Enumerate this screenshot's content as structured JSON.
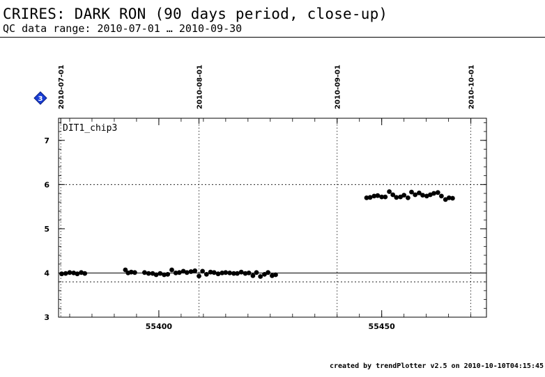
{
  "header": {
    "title": "CRIRES: DARK RON (90 days period, close-up)",
    "subtitle": "QC data range: 2010-07-01 … 2010-09-30"
  },
  "footer": {
    "text": "created by trendPlotter v2.5 on 2010-10-10T04:15:45"
  },
  "badge": {
    "label": "3",
    "color": "#1a3fd6"
  },
  "chart_data": {
    "type": "scatter",
    "panel_label": "DIT1_chip3",
    "xlim": [
      55377.5,
      55473.5
    ],
    "ylim": [
      3,
      7.5
    ],
    "x_ticks": [
      55400,
      55450
    ],
    "y_ticks": [
      3,
      4,
      5,
      6,
      7
    ],
    "date_markers": [
      {
        "label": "2010-07-01",
        "mjd": 55378
      },
      {
        "label": "2010-08-01",
        "mjd": 55409
      },
      {
        "label": "2010-09-01",
        "mjd": 55440
      },
      {
        "label": "2010-10-01",
        "mjd": 55470
      }
    ],
    "reference_lines": {
      "solid": 4.0,
      "dotted": [
        3.8,
        6.0
      ]
    },
    "grid": "dotted date verticals",
    "marker_color": "#000000",
    "points": [
      [
        55378.2,
        3.98
      ],
      [
        55379.1,
        3.99
      ],
      [
        55380.0,
        4.01
      ],
      [
        55380.9,
        4.0
      ],
      [
        55381.7,
        3.98
      ],
      [
        55382.6,
        4.01
      ],
      [
        55383.4,
        3.99
      ],
      [
        55392.5,
        4.07
      ],
      [
        55393.1,
        4.0
      ],
      [
        55393.8,
        4.02
      ],
      [
        55394.6,
        4.01
      ],
      [
        55396.8,
        4.01
      ],
      [
        55397.7,
        3.99
      ],
      [
        55398.6,
        3.99
      ],
      [
        55399.4,
        3.96
      ],
      [
        55400.3,
        3.99
      ],
      [
        55401.2,
        3.96
      ],
      [
        55402.0,
        3.97
      ],
      [
        55402.9,
        4.07
      ],
      [
        55403.8,
        4.0
      ],
      [
        55404.6,
        4.01
      ],
      [
        55405.5,
        4.04
      ],
      [
        55406.3,
        4.01
      ],
      [
        55407.2,
        4.03
      ],
      [
        55408.1,
        4.05
      ],
      [
        55409.0,
        3.93
      ],
      [
        55409.8,
        4.04
      ],
      [
        55410.7,
        3.97
      ],
      [
        55411.6,
        4.02
      ],
      [
        55412.4,
        4.01
      ],
      [
        55413.3,
        3.98
      ],
      [
        55414.2,
        4.0
      ],
      [
        55415.0,
        4.01
      ],
      [
        55415.9,
        4.0
      ],
      [
        55416.8,
        3.99
      ],
      [
        55417.6,
        3.99
      ],
      [
        55418.5,
        4.02
      ],
      [
        55419.4,
        3.99
      ],
      [
        55420.2,
        4.0
      ],
      [
        55421.1,
        3.94
      ],
      [
        55421.9,
        4.01
      ],
      [
        55422.8,
        3.92
      ],
      [
        55423.7,
        3.97
      ],
      [
        55424.5,
        4.01
      ],
      [
        55425.4,
        3.94
      ],
      [
        55426.2,
        3.96
      ],
      [
        55446.6,
        5.7
      ],
      [
        55447.4,
        5.71
      ],
      [
        55448.3,
        5.74
      ],
      [
        55449.1,
        5.75
      ],
      [
        55450.0,
        5.72
      ],
      [
        55450.8,
        5.72
      ],
      [
        55451.7,
        5.84
      ],
      [
        55452.5,
        5.77
      ],
      [
        55453.3,
        5.71
      ],
      [
        55454.2,
        5.72
      ],
      [
        55455.0,
        5.76
      ],
      [
        55455.9,
        5.7
      ],
      [
        55456.7,
        5.83
      ],
      [
        55457.5,
        5.77
      ],
      [
        55458.4,
        5.81
      ],
      [
        55459.2,
        5.76
      ],
      [
        55460.1,
        5.74
      ],
      [
        55460.9,
        5.77
      ],
      [
        55461.7,
        5.8
      ],
      [
        55462.6,
        5.82
      ],
      [
        55463.4,
        5.74
      ],
      [
        55464.3,
        5.66
      ],
      [
        55465.1,
        5.7
      ],
      [
        55465.9,
        5.69
      ]
    ]
  }
}
